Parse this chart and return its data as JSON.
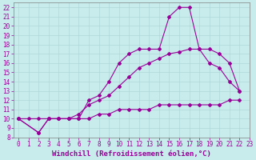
{
  "xlabel": "Windchill (Refroidissement éolien,°C)",
  "background_color": "#c8ecec",
  "grid_color": "#b0d8d8",
  "line_color": "#990099",
  "xlim": [
    -0.5,
    23
  ],
  "ylim": [
    8,
    22.5
  ],
  "xticks": [
    0,
    1,
    2,
    3,
    4,
    5,
    6,
    7,
    8,
    9,
    10,
    11,
    12,
    13,
    14,
    15,
    16,
    17,
    18,
    19,
    20,
    21,
    22,
    23
  ],
  "yticks": [
    8,
    9,
    10,
    11,
    12,
    13,
    14,
    15,
    16,
    17,
    18,
    19,
    20,
    21,
    22
  ],
  "line1_x": [
    0,
    1,
    2,
    3,
    4,
    5,
    6,
    7,
    8,
    9,
    10,
    11,
    12,
    13,
    14,
    15,
    16,
    17,
    18,
    19,
    20,
    21,
    22
  ],
  "line1_y": [
    10,
    10,
    10,
    10,
    10,
    10,
    10,
    10,
    10.5,
    10.5,
    11,
    11,
    11,
    11,
    11.5,
    11.5,
    11.5,
    11.5,
    11.5,
    11.5,
    11.5,
    12,
    12
  ],
  "line2_x": [
    0,
    2,
    3,
    4,
    5,
    6,
    7,
    8,
    9,
    10,
    11,
    12,
    13,
    14,
    15,
    16,
    17,
    18,
    19,
    20,
    21,
    22
  ],
  "line2_y": [
    10,
    8.5,
    10,
    10,
    10,
    10.5,
    11.5,
    12,
    12.5,
    13.5,
    14.5,
    15.5,
    16,
    16.5,
    17,
    17.2,
    17.5,
    17.5,
    17.5,
    17,
    16,
    13
  ],
  "line3_x": [
    0,
    2,
    3,
    4,
    5,
    6,
    7,
    8,
    9,
    10,
    11,
    12,
    13,
    14,
    15,
    16,
    17,
    18,
    19,
    20,
    21,
    22
  ],
  "line3_y": [
    10,
    8.5,
    10,
    10,
    10,
    10,
    12,
    12.5,
    14,
    16,
    17,
    17.5,
    17.5,
    17.5,
    21,
    22,
    22,
    17.5,
    16,
    15.5,
    14,
    13
  ],
  "tick_fontsize": 5.5,
  "label_fontsize": 6.5,
  "marker_size": 2.0,
  "line_width": 0.8
}
